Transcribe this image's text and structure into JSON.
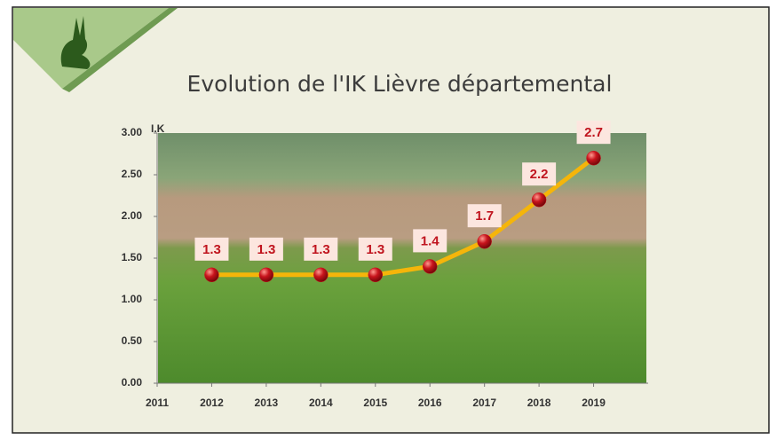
{
  "chart_data": {
    "type": "line",
    "title": "Evolution de l'IK Lièvre départemental",
    "y_label": "I.K",
    "x": [
      2012,
      2013,
      2014,
      2015,
      2016,
      2017,
      2018,
      2019
    ],
    "values": [
      1.3,
      1.3,
      1.3,
      1.3,
      1.4,
      1.7,
      2.2,
      2.7
    ],
    "color": "#f5b50a",
    "marker_color": "#c8141c",
    "xlim": [
      2011,
      2020
    ],
    "xticks": [
      2011,
      2012,
      2013,
      2014,
      2015,
      2016,
      2017,
      2018,
      2019
    ],
    "ylim": [
      0,
      3
    ],
    "yticks": [
      {
        "value": 0,
        "label": "0.00"
      },
      {
        "value": 0.5,
        "label": "0.50"
      },
      {
        "value": 1,
        "label": "1.00"
      },
      {
        "value": 1.5,
        "label": "1.50"
      },
      {
        "value": 2,
        "label": "2.00"
      },
      {
        "value": 2.5,
        "label": "2.50"
      },
      {
        "value": 3,
        "label": "3.00"
      }
    ]
  }
}
